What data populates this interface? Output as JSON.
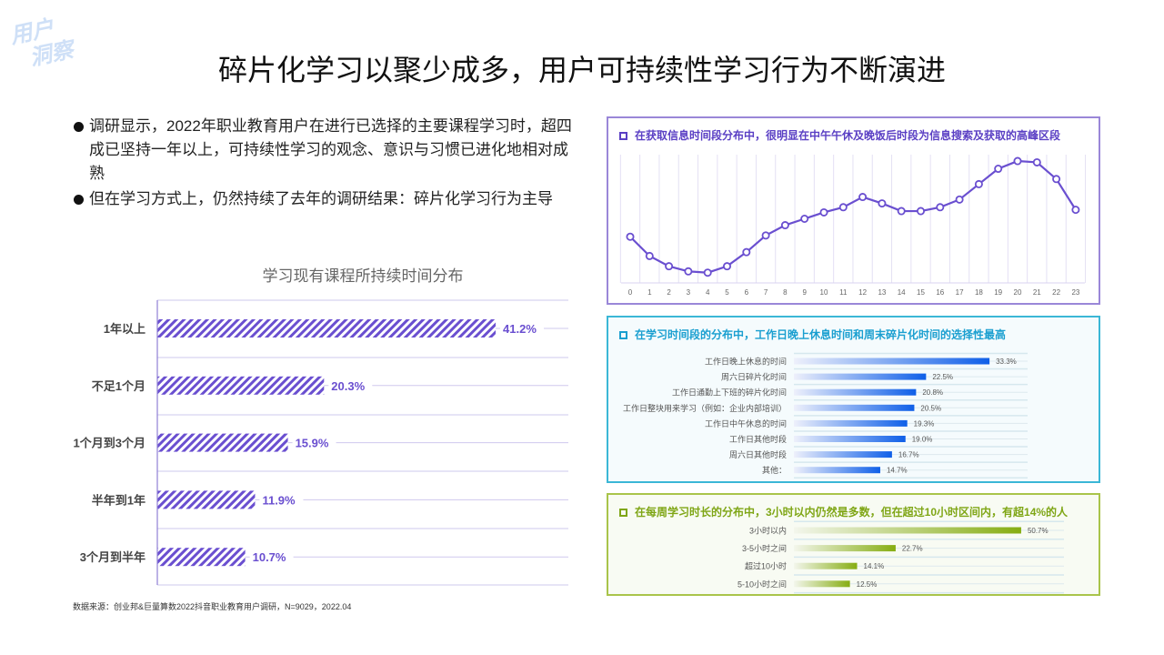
{
  "watermark": [
    "用户",
    "洞察"
  ],
  "title": "碎片化学习以聚少成多，用户可持续性学习行为不断演进",
  "bullets": [
    "调研显示，2022年职业教育用户在进行已选择的主要课程学习时，超四成已坚持一年以上，可持续性学习的观念、意识与习惯已进化地相对成熟",
    "但在学习方式上，仍然持续了去年的调研结果：碎片化学习行为主导"
  ],
  "source": "数据来源：创业邦&巨量算数2022抖音职业教育用户调研，N=9029，2022.04",
  "colors": {
    "purple": "#6a4fd0",
    "blue": "#1a6ae6",
    "cyan_border": "#3bb7d6",
    "green": "#8db21a",
    "green_border": "#a9c44a"
  },
  "chart_data": [
    {
      "type": "bar",
      "orientation": "horizontal",
      "title": "学习现有课程所持续时间分布",
      "pattern": "diagonal-hatch",
      "color": "#6a4fd0",
      "categories": [
        "1年以上",
        "不足1个月",
        "1个月到3个月",
        "半年到1年",
        "3个月到半年"
      ],
      "values": [
        41.2,
        20.3,
        15.9,
        11.9,
        10.7
      ],
      "labels": [
        "41.2%",
        "20.3%",
        "15.9%",
        "11.9%",
        "10.7%"
      ],
      "xlim": [
        0,
        50
      ]
    },
    {
      "type": "line",
      "title": "在获取信息时间段分布中，很明显在中午午休及晚饭后时段为信息搜索及获取的高峰区段",
      "color": "#6a4fd0",
      "x": [
        0,
        1,
        2,
        3,
        4,
        5,
        6,
        7,
        8,
        9,
        10,
        11,
        12,
        13,
        14,
        15,
        16,
        17,
        18,
        19,
        20,
        21,
        22,
        23
      ],
      "values": [
        36,
        21,
        13,
        9,
        8,
        13,
        24,
        37,
        45,
        50,
        55,
        59,
        67,
        62,
        56,
        56,
        59,
        65,
        77,
        89,
        95,
        94,
        81,
        57
      ],
      "ylim": [
        0,
        100
      ],
      "grid": "vertical",
      "y_axis_labels": false
    },
    {
      "type": "bar",
      "orientation": "horizontal",
      "title": "在学习时间段的分布中，工作日晚上休息时间和周末碎片化时间的选择性最高",
      "color": "#1a6ae6",
      "categories": [
        "工作日晚上休息的时间",
        "周六日碎片化时间",
        "工作日通勤上下班的碎片化时间",
        "工作日整块用来学习（例如：企业内部培训）",
        "工作日中午休息的时间",
        "工作日其他时段",
        "周六日其他时段",
        "其他："
      ],
      "values": [
        33.3,
        22.5,
        20.8,
        20.5,
        19.3,
        19.0,
        16.7,
        14.7
      ],
      "labels": [
        "33.3%",
        "22.5%",
        "20.8%",
        "20.5%",
        "19.3%",
        "19.0%",
        "16.7%",
        "14.7%"
      ]
    },
    {
      "type": "bar",
      "orientation": "horizontal",
      "title": "在每周学习时长的分布中，3小时以内仍然是多数，但在超过10小时区间内，有超14%的人",
      "color": "#8db21a",
      "categories": [
        "3小时以内",
        "3-5小时之间",
        "超过10小时",
        "5-10小时之间"
      ],
      "values": [
        50.7,
        22.7,
        14.1,
        12.5
      ],
      "labels": [
        "50.7%",
        "22.7%",
        "14.1%",
        "12.5%"
      ]
    }
  ]
}
